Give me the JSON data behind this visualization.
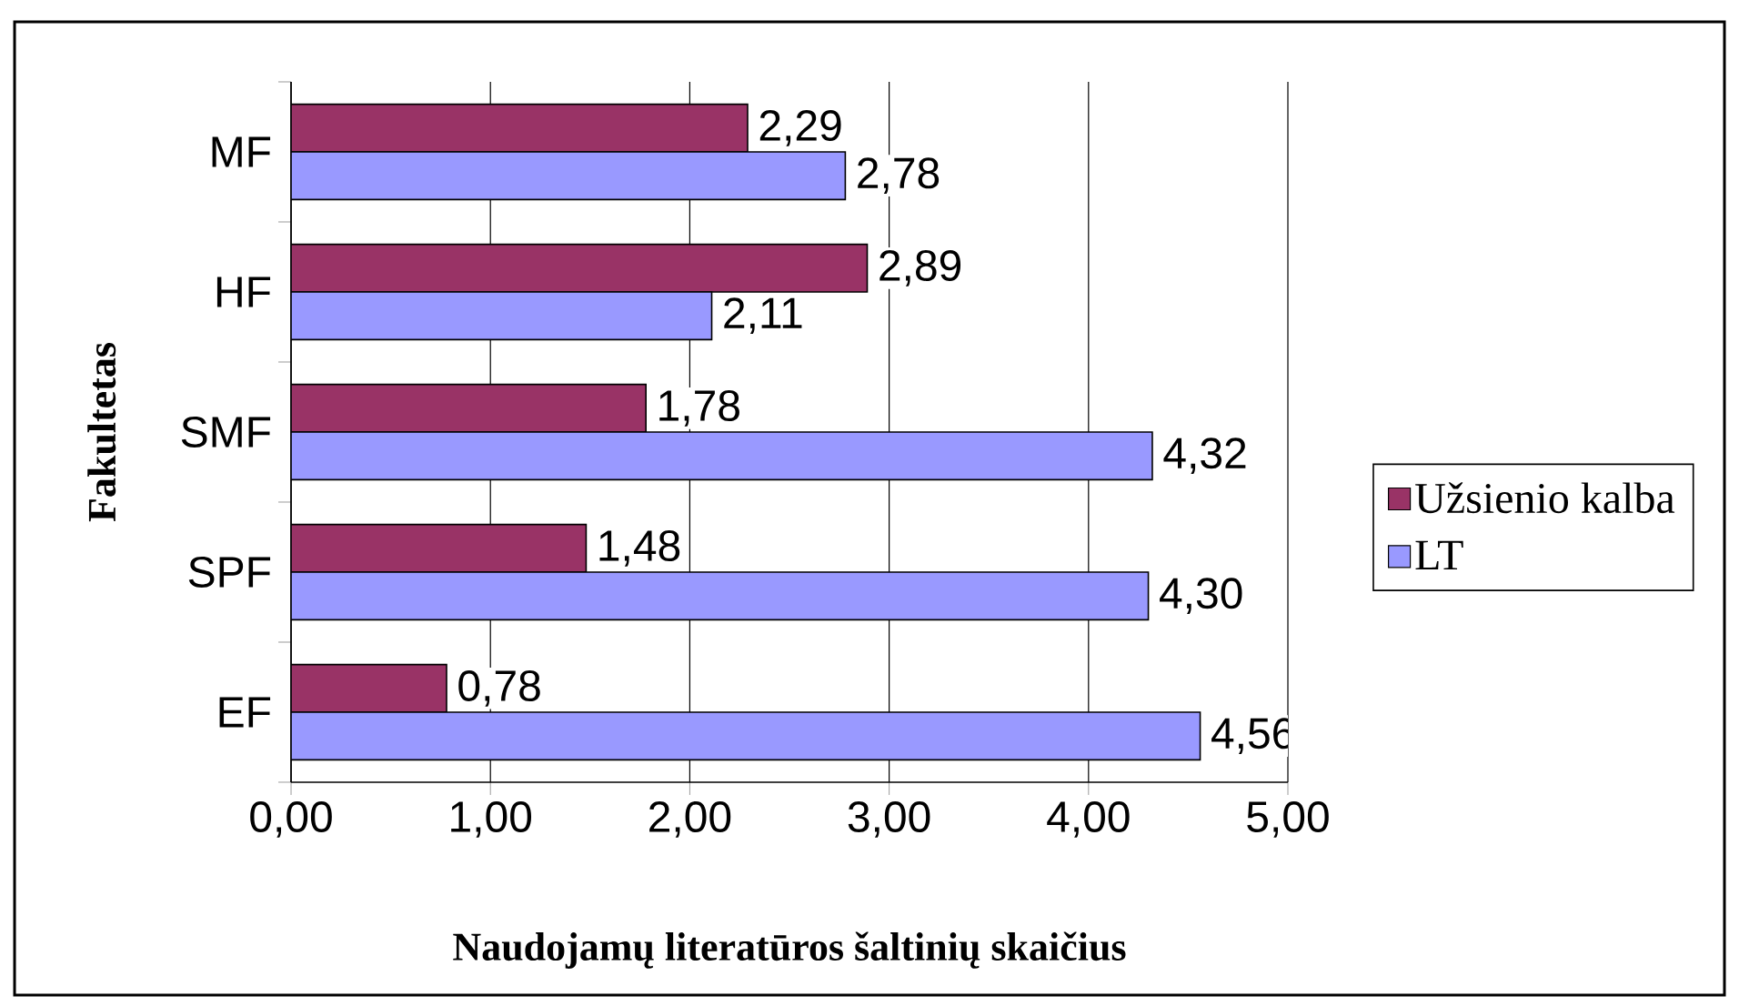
{
  "chart_data": {
    "type": "bar",
    "orientation": "horizontal",
    "xlabel": "Naudojamų literatūros šaltinių skaičius",
    "ylabel": "Fakultetas",
    "categories": [
      "MF",
      "HF",
      "SMF",
      "SPF",
      "EF"
    ],
    "series": [
      {
        "name": "Užsienio kalba",
        "color": "#993366",
        "values": [
          2.29,
          2.89,
          1.78,
          1.48,
          0.78
        ],
        "value_labels": [
          "2,29",
          "2,89",
          "1,78",
          "1,48",
          "0,78"
        ]
      },
      {
        "name": "LT",
        "color": "#9999ff",
        "values": [
          2.78,
          2.11,
          4.32,
          4.3,
          4.56
        ],
        "value_labels": [
          "2,78",
          "2,11",
          "4,32",
          "4,30",
          "4,56"
        ]
      }
    ],
    "xlim": [
      0,
      5
    ],
    "xticks": [
      {
        "value": 0,
        "label": "0,00"
      },
      {
        "value": 1,
        "label": "1,00"
      },
      {
        "value": 2,
        "label": "2,00"
      },
      {
        "value": 3,
        "label": "3,00"
      },
      {
        "value": 4,
        "label": "4,00"
      },
      {
        "value": 5,
        "label": "5,00"
      }
    ],
    "grid": "x",
    "legend": "right"
  }
}
